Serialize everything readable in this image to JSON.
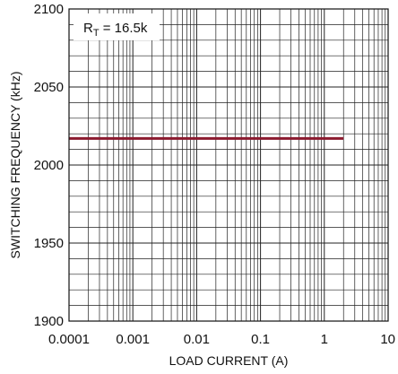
{
  "chart_data": {
    "type": "line",
    "title": "",
    "xlabel": "LOAD CURRENT (A)",
    "ylabel": "SWITCHING FREQUENCY (kHz)",
    "x_scale": "log",
    "xlim": [
      0.0001,
      10
    ],
    "ylim": [
      1900,
      2100
    ],
    "grid": true,
    "x_ticks": [
      {
        "value": 0.0001,
        "label": "0.0001"
      },
      {
        "value": 0.001,
        "label": "0.001"
      },
      {
        "value": 0.01,
        "label": "0.01"
      },
      {
        "value": 0.1,
        "label": "0.1"
      },
      {
        "value": 1,
        "label": "1"
      },
      {
        "value": 10,
        "label": "10"
      }
    ],
    "y_ticks": [
      {
        "value": 1900,
        "label": "1900"
      },
      {
        "value": 1950,
        "label": "1950"
      },
      {
        "value": 2000,
        "label": "2000"
      },
      {
        "value": 2050,
        "label": "2050"
      },
      {
        "value": 2100,
        "label": "2100"
      }
    ],
    "annotation": {
      "prefix": "R",
      "subscript": "T",
      "suffix": " = 16.5k"
    },
    "series": [
      {
        "color": "#8b1a2f",
        "x": [
          0.0001,
          2
        ],
        "y": [
          2017,
          2017
        ]
      }
    ]
  }
}
